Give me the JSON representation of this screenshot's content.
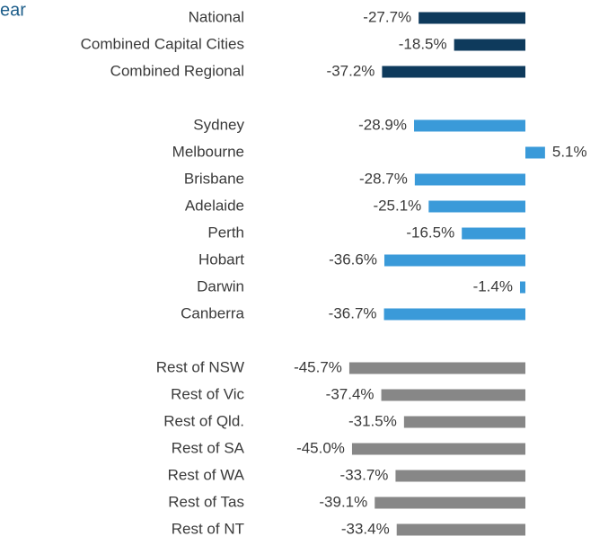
{
  "chart_data": {
    "type": "bar",
    "orientation": "horizontal",
    "title": "ear",
    "categories": [
      "National",
      "Combined Capital Cities",
      "Combined Regional",
      null,
      "Sydney",
      "Melbourne",
      "Brisbane",
      "Adelaide",
      "Perth",
      "Hobart",
      "Darwin",
      "Canberra",
      null,
      "Rest of NSW",
      "Rest of Vic",
      "Rest of Qld.",
      "Rest of SA",
      "Rest of WA",
      "Rest of Tas",
      "Rest of NT"
    ],
    "values": [
      -27.7,
      -18.5,
      -37.2,
      null,
      -28.9,
      5.1,
      -28.7,
      -25.1,
      -16.5,
      -36.6,
      -1.4,
      -36.7,
      null,
      -45.7,
      -37.4,
      -31.5,
      -45.0,
      -33.7,
      -39.1,
      -33.4
    ],
    "value_labels": [
      "-27.7%",
      "-18.5%",
      "-37.2%",
      null,
      "-28.9%",
      "5.1%",
      "-28.7%",
      "-25.1%",
      "-16.5%",
      "-36.6%",
      "-1.4%",
      "-36.7%",
      null,
      "-45.7%",
      "-37.4%",
      "-31.5%",
      "-45.0%",
      "-33.7%",
      "-39.1%",
      "-33.4%"
    ],
    "colors": [
      "#0e3a5c",
      "#0e3a5c",
      "#0e3a5c",
      null,
      "#3a9ad9",
      "#3a9ad9",
      "#3a9ad9",
      "#3a9ad9",
      "#3a9ad9",
      "#3a9ad9",
      "#3a9ad9",
      "#3a9ad9",
      null,
      "#878787",
      "#878787",
      "#878787",
      "#878787",
      "#878787",
      "#878787",
      "#878787"
    ]
  }
}
